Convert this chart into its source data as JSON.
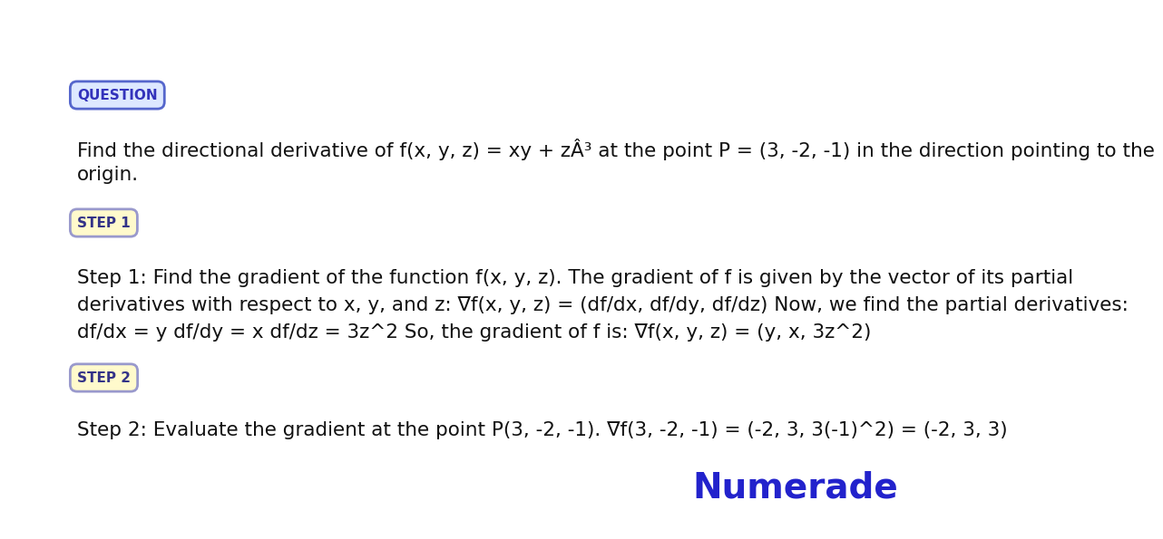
{
  "background_color": "#ffffff",
  "question_label": "QUESTION",
  "question_label_color": "#3333bb",
  "question_label_border_color": "#5566cc",
  "question_label_bg": "#dde8ff",
  "question_text_line1": "Find the directional derivative of f(x, y, z) = xy + zÂ³ at the point P = (3, -2, -1) in the direction pointing to the",
  "question_text_line2": "origin.",
  "step1_label": "STEP 1",
  "step1_label_color": "#333388",
  "step1_label_bg": "#fffacc",
  "step1_label_border": "#9999cc",
  "step1_line1": "Step 1: Find the gradient of the function f(x, y, z). The gradient of f is given by the vector of its partial",
  "step1_line2": "derivatives with respect to x, y, and z: ∇f(x, y, z) = (df/dx, df/dy, df/dz) Now, we find the partial derivatives:",
  "step1_line3": "df/dx = y df/dy = x df/dz = 3z^2 So, the gradient of f is: ∇f(x, y, z) = (y, x, 3z^2)",
  "step2_label": "STEP 2",
  "step2_label_color": "#333388",
  "step2_label_bg": "#fffacc",
  "step2_label_border": "#9999cc",
  "step2_text": "Step 2: Evaluate the gradient at the point P(3, -2, -1). ∇f(3, -2, -1) = (-2, 3, 3(-1)^2) = (-2, 3, 3)",
  "numerade_text": "Numerade",
  "numerade_color": "#2222cc",
  "body_text_color": "#111111",
  "font_size_body": 15.5,
  "font_size_label": 11,
  "font_size_numerade": 28
}
